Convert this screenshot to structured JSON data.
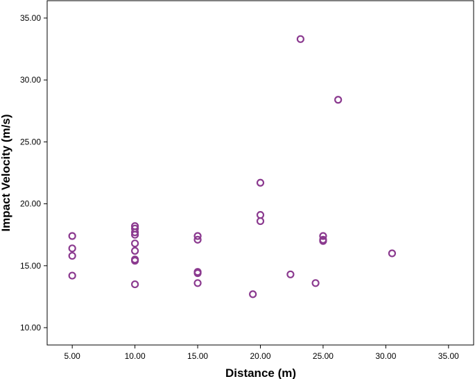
{
  "colors": {
    "marker": "#8b3a8f",
    "frame": "#000000",
    "background": "#ffffff"
  },
  "chart_data": {
    "type": "scatter",
    "title": "",
    "xlabel": "Distance (m)",
    "ylabel": "Impact Velocity (m/s)",
    "xlim": [
      3,
      37
    ],
    "ylim": [
      8.6,
      36.4
    ],
    "x_ticks": [
      5,
      10,
      15,
      20,
      25,
      30,
      35
    ],
    "x_tick_labels": [
      "5.00",
      "10.00",
      "15.00",
      "20.00",
      "25.00",
      "30.00",
      "35.00"
    ],
    "y_ticks": [
      10,
      15,
      20,
      25,
      30,
      35
    ],
    "y_tick_labels": [
      "10.00",
      "15.00",
      "20.00",
      "25.00",
      "30.00",
      "35.00"
    ],
    "grid": false,
    "marker": "open-circle",
    "points": [
      {
        "x": 5,
        "y": 17.4
      },
      {
        "x": 5,
        "y": 16.4
      },
      {
        "x": 5,
        "y": 15.8
      },
      {
        "x": 5,
        "y": 14.2
      },
      {
        "x": 10,
        "y": 18.2
      },
      {
        "x": 10,
        "y": 18.0
      },
      {
        "x": 10,
        "y": 17.7
      },
      {
        "x": 10,
        "y": 17.5
      },
      {
        "x": 10,
        "y": 16.8
      },
      {
        "x": 10,
        "y": 16.2
      },
      {
        "x": 10,
        "y": 15.5
      },
      {
        "x": 10,
        "y": 15.4
      },
      {
        "x": 10,
        "y": 13.5
      },
      {
        "x": 15,
        "y": 17.4
      },
      {
        "x": 15,
        "y": 17.1
      },
      {
        "x": 15,
        "y": 14.5
      },
      {
        "x": 15,
        "y": 14.4
      },
      {
        "x": 15,
        "y": 13.6
      },
      {
        "x": 19.4,
        "y": 12.7
      },
      {
        "x": 20,
        "y": 21.7
      },
      {
        "x": 20,
        "y": 19.1
      },
      {
        "x": 20,
        "y": 18.6
      },
      {
        "x": 22.4,
        "y": 14.3
      },
      {
        "x": 23.2,
        "y": 33.3
      },
      {
        "x": 24.4,
        "y": 13.6
      },
      {
        "x": 25,
        "y": 17.4
      },
      {
        "x": 25,
        "y": 17.1
      },
      {
        "x": 25,
        "y": 17.0
      },
      {
        "x": 26.2,
        "y": 28.4
      },
      {
        "x": 30.5,
        "y": 16.0
      }
    ]
  }
}
